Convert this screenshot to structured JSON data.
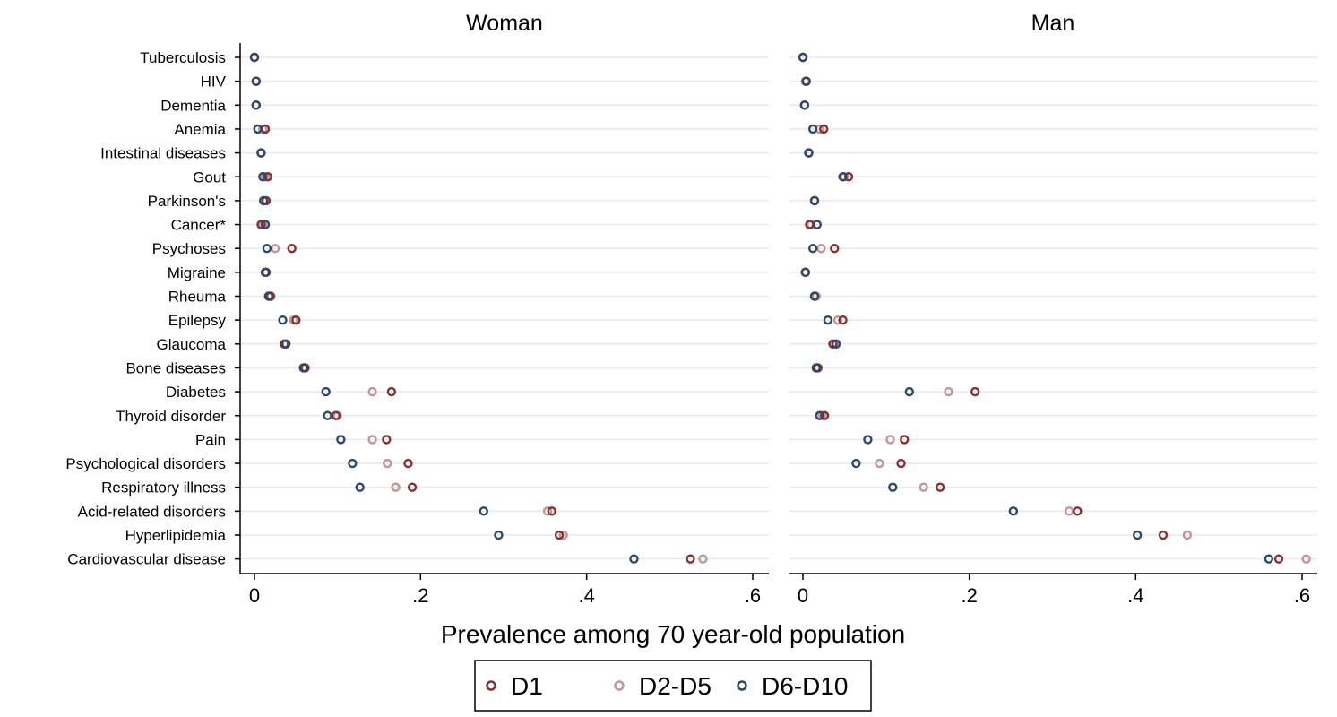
{
  "chart_data": {
    "type": "scatter",
    "subtype": "dot-plot",
    "panels": [
      "Woman",
      "Man"
    ],
    "categories": [
      "Tuberculosis",
      "HIV",
      "Dementia",
      "Anemia",
      "Intestinal diseases",
      "Gout",
      "Parkinson's",
      "Cancer*",
      "Psychoses",
      "Migraine",
      "Rheuma",
      "Epilepsy",
      "Glaucoma",
      "Bone diseases",
      "Diabetes",
      "Thyroid disorder",
      "Pain",
      "Psychological disorders",
      "Respiratory illness",
      "Acid-related disorders",
      "Hyperlipidemia",
      "Cardiovascular disease"
    ],
    "xlabel": "Prevalence among 70 year-old population",
    "xlim": [
      0,
      0.6
    ],
    "xticks": [
      0,
      0.2,
      0.4,
      0.6
    ],
    "xtick_labels": [
      "0",
      ".2",
      ".4",
      ".6"
    ],
    "grid": true,
    "legend_position": "bottom",
    "series": [
      {
        "name": "D1",
        "color": "#8b2e2e",
        "woman": [
          0.0,
          0.002,
          0.002,
          0.013,
          0.008,
          0.016,
          0.014,
          0.008,
          0.045,
          0.014,
          0.019,
          0.05,
          0.036,
          0.061,
          0.165,
          0.098,
          0.159,
          0.185,
          0.19,
          0.358,
          0.367,
          0.525
        ],
        "man": [
          0.0,
          0.004,
          0.002,
          0.025,
          0.007,
          0.055,
          0.014,
          0.008,
          0.038,
          0.003,
          0.014,
          0.048,
          0.036,
          0.018,
          0.207,
          0.026,
          0.122,
          0.118,
          0.165,
          0.33,
          0.433,
          0.572
        ]
      },
      {
        "name": "D2-D5",
        "color": "#c49494",
        "woman": [
          0.0,
          0.002,
          0.002,
          0.01,
          0.008,
          0.013,
          0.013,
          0.01,
          0.025,
          0.014,
          0.02,
          0.047,
          0.036,
          0.06,
          0.142,
          0.1,
          0.142,
          0.16,
          0.17,
          0.353,
          0.372,
          0.54
        ],
        "man": [
          0.0,
          0.003,
          0.002,
          0.02,
          0.007,
          0.05,
          0.014,
          0.01,
          0.022,
          0.003,
          0.016,
          0.042,
          0.038,
          0.017,
          0.175,
          0.023,
          0.105,
          0.092,
          0.145,
          0.32,
          0.462,
          0.605
        ]
      },
      {
        "name": "D6-D10",
        "color": "#2c4a6b",
        "woman": [
          0.0,
          0.002,
          0.002,
          0.004,
          0.008,
          0.01,
          0.011,
          0.013,
          0.015,
          0.013,
          0.017,
          0.034,
          0.038,
          0.059,
          0.086,
          0.088,
          0.104,
          0.118,
          0.127,
          0.276,
          0.294,
          0.457
        ],
        "man": [
          0.0,
          0.004,
          0.002,
          0.012,
          0.007,
          0.048,
          0.014,
          0.017,
          0.012,
          0.003,
          0.014,
          0.03,
          0.04,
          0.016,
          0.128,
          0.02,
          0.078,
          0.064,
          0.108,
          0.253,
          0.402,
          0.56
        ]
      }
    ]
  }
}
